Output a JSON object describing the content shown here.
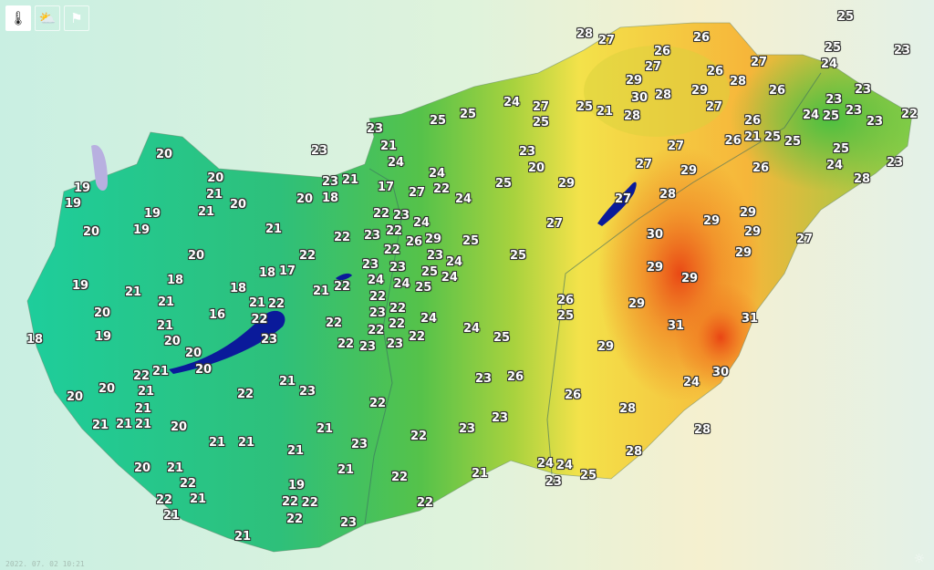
{
  "toolbar": {
    "buttons": [
      {
        "icon": "thermometer-icon",
        "active": true
      },
      {
        "icon": "partly-cloudy-icon",
        "active": false
      },
      {
        "icon": "flag-icon",
        "active": false
      }
    ]
  },
  "timestamp": "2022. 07. 02 10:21",
  "watermark": "met",
  "colors": {
    "cool": "#1ccf9f",
    "mild": "#55c24a",
    "warm": "#f3e24a",
    "hot": "#f07a20",
    "lake": "#0a1a9a"
  },
  "map": {
    "labels": [
      25,
      25,
      23,
      28,
      27,
      26,
      26,
      27,
      27,
      29,
      26,
      28,
      26,
      24,
      23,
      30,
      28,
      29,
      27,
      22,
      23,
      24,
      25,
      23,
      23,
      24,
      27,
      25,
      25,
      21,
      28,
      25,
      25,
      23,
      21,
      24,
      23,
      23,
      20,
      26,
      21,
      25,
      26,
      25,
      27,
      25,
      24,
      23,
      28,
      27,
      29,
      26,
      29,
      25,
      24,
      22,
      27,
      24,
      17,
      23,
      21,
      18,
      20,
      20,
      19,
      19,
      21,
      20,
      20,
      21,
      19,
      19,
      20,
      21,
      28,
      27,
      29,
      29,
      29,
      27,
      30,
      27,
      22,
      23,
      22,
      24,
      22,
      23,
      22,
      26,
      29,
      23,
      25,
      25,
      24,
      25,
      24,
      23,
      24,
      22,
      23,
      24,
      25,
      20,
      22,
      29,
      29,
      29,
      18,
      18,
      17,
      19,
      21,
      18,
      21,
      22,
      23,
      21,
      21,
      22,
      16,
      22,
      20,
      22,
      22,
      22,
      24,
      26,
      25,
      29,
      31,
      31,
      21,
      20,
      19,
      18,
      22,
      24,
      25,
      23,
      22,
      23,
      23,
      22,
      29,
      20,
      20,
      21,
      22,
      21,
      30,
      24,
      23,
      26,
      21,
      23,
      20,
      20,
      22,
      26,
      22,
      21,
      28,
      21,
      21,
      21,
      20,
      21,
      23,
      23,
      28,
      21,
      21,
      22,
      23,
      21,
      28,
      20,
      21,
      21,
      22,
      21,
      24,
      24,
      23,
      25,
      22,
      21,
      19,
      22,
      22,
      22,
      21,
      22,
      22,
      23,
      21
    ]
  }
}
